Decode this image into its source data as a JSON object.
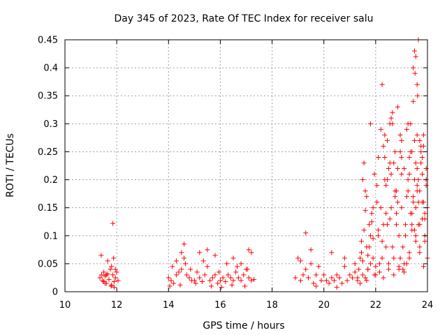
{
  "chart_data": {
    "type": "scatter",
    "title": "Day 345 of 2023, Rate Of TEC Index for receiver salu",
    "xlabel": "GPS time / hours",
    "ylabel": "ROTI / TECUs",
    "xlim": [
      10,
      24
    ],
    "ylim": [
      0,
      0.45
    ],
    "xticks": [
      10,
      12,
      14,
      16,
      18,
      20,
      22,
      24
    ],
    "yticks": [
      0,
      0.05,
      0.1,
      0.15,
      0.2,
      0.25,
      0.3,
      0.35,
      0.4,
      0.45
    ],
    "xtick_labels": [
      "10",
      "12",
      "14",
      "16",
      "18",
      "20",
      "22",
      "24"
    ],
    "ytick_labels": [
      "0",
      "0.05",
      "0.1",
      "0.15",
      "0.2",
      "0.25",
      "0.3",
      "0.35",
      "0.4",
      "0.45"
    ],
    "grid": true,
    "marker": "plus",
    "series": [
      {
        "name": "ROTI",
        "color": "#ff0000",
        "x": [
          11.35,
          11.4,
          11.45,
          11.5,
          11.55,
          11.6,
          11.65,
          11.7,
          11.75,
          11.8,
          11.85,
          11.9,
          11.95,
          12.0,
          12.05,
          11.55,
          11.6,
          11.8,
          11.85,
          11.5,
          11.9,
          11.95,
          11.65,
          11.42,
          11.78,
          11.88,
          14.0,
          14.1,
          14.2,
          14.3,
          14.4,
          14.5,
          14.6,
          14.7,
          14.8,
          14.9,
          15.0,
          15.1,
          15.2,
          15.3,
          15.4,
          15.5,
          15.6,
          15.7,
          15.8,
          15.9,
          16.0,
          16.1,
          16.2,
          16.3,
          16.4,
          16.5,
          16.6,
          16.7,
          16.8,
          16.9,
          17.0,
          17.1,
          17.2,
          17.3,
          14.5,
          14.6,
          14.65,
          14.3,
          15.2,
          15.5,
          15.8,
          16.5,
          16.8,
          17.1,
          17.2,
          14.15,
          14.85,
          15.35,
          15.95,
          16.25,
          16.65,
          17.05,
          14.05,
          14.45,
          15.05,
          15.65,
          16.05,
          16.45,
          16.95,
          18.9,
          19.0,
          19.1,
          19.2,
          19.3,
          19.4,
          19.5,
          19.6,
          19.7,
          19.8,
          19.9,
          20.0,
          20.1,
          20.2,
          20.3,
          20.4,
          20.5,
          20.6,
          20.7,
          20.8,
          20.9,
          21.0,
          21.1,
          21.2,
          21.3,
          19.3,
          19.5,
          20.3,
          19.1,
          19.7,
          20.5,
          20.8,
          21.2,
          21.3,
          21.35,
          21.4,
          21.45,
          21.5,
          21.55,
          21.6,
          21.65,
          21.7,
          21.75,
          21.8,
          21.85,
          21.9,
          21.95,
          22.0,
          21.4,
          21.5,
          21.6,
          21.7,
          21.8,
          21.9,
          21.55,
          21.65,
          21.75,
          21.45,
          21.85,
          21.95,
          21.6,
          21.7,
          21.8,
          21.9,
          21.5,
          21.65,
          22.0,
          22.05,
          22.1,
          22.15,
          22.2,
          22.25,
          22.3,
          22.35,
          22.4,
          22.45,
          22.5,
          22.55,
          22.6,
          22.65,
          22.7,
          22.75,
          22.8,
          22.85,
          22.9,
          22.95,
          23.0,
          22.1,
          22.2,
          22.3,
          22.4,
          22.5,
          22.6,
          22.7,
          22.8,
          22.9,
          23.0,
          22.25,
          22.35,
          22.45,
          22.55,
          22.65,
          22.75,
          22.85,
          22.95,
          22.15,
          22.3,
          22.5,
          22.7,
          22.9,
          22.05,
          22.25,
          22.45,
          22.65,
          22.85,
          22.35,
          22.55,
          22.75,
          22.95,
          22.1,
          22.4,
          22.6,
          22.8,
          23.0,
          23.05,
          23.1,
          23.15,
          23.2,
          23.25,
          23.3,
          23.35,
          23.4,
          23.45,
          23.5,
          23.55,
          23.6,
          23.65,
          23.7,
          23.75,
          23.8,
          23.85,
          23.9,
          23.95,
          24.0,
          23.1,
          23.2,
          23.3,
          23.4,
          23.5,
          23.6,
          23.7,
          23.8,
          23.9,
          24.0,
          23.15,
          23.25,
          23.35,
          23.45,
          23.55,
          23.65,
          23.75,
          23.85,
          23.95,
          23.45,
          23.5,
          23.52,
          23.55,
          23.6,
          23.62,
          23.65,
          23.7,
          23.3,
          23.4,
          23.6,
          23.7,
          23.8,
          23.9,
          23.05,
          23.25,
          23.45,
          23.65,
          23.85,
          23.35,
          23.55,
          23.75,
          23.95,
          23.1,
          23.4,
          23.6,
          23.8,
          23.2,
          23.5,
          23.7,
          23.9,
          23.0,
          23.3,
          23.55,
          23.85
        ],
        "y": [
          0.025,
          0.065,
          0.02,
          0.035,
          0.015,
          0.03,
          0.055,
          0.022,
          0.04,
          0.012,
          0.03,
          0.018,
          0.025,
          0.035,
          0.02,
          0.028,
          0.015,
          0.045,
          0.122,
          0.018,
          0.008,
          0.04,
          0.032,
          0.03,
          0.01,
          0.06,
          0.025,
          0.02,
          0.015,
          0.03,
          0.035,
          0.04,
          0.085,
          0.03,
          0.025,
          0.02,
          0.02,
          0.035,
          0.025,
          0.018,
          0.03,
          0.045,
          0.02,
          0.025,
          0.03,
          0.015,
          0.02,
          0.025,
          0.018,
          0.03,
          0.025,
          0.02,
          0.035,
          0.025,
          0.02,
          0.03,
          0.04,
          0.025,
          0.02,
          0.022,
          0.07,
          0.06,
          0.05,
          0.055,
          0.07,
          0.075,
          0.065,
          0.06,
          0.05,
          0.075,
          0.07,
          0.045,
          0.04,
          0.055,
          0.035,
          0.05,
          0.045,
          0.04,
          0.01,
          0.012,
          0.015,
          0.01,
          0.008,
          0.012,
          0.01,
          0.025,
          0.06,
          0.02,
          0.03,
          0.04,
          0.025,
          0.05,
          0.015,
          0.03,
          0.045,
          0.02,
          0.03,
          0.02,
          0.015,
          0.025,
          0.02,
          0.03,
          0.025,
          0.015,
          0.045,
          0.02,
          0.03,
          0.025,
          0.035,
          0.02,
          0.105,
          0.075,
          0.07,
          0.055,
          0.01,
          0.008,
          0.06,
          0.05,
          0.025,
          0.04,
          0.06,
          0.09,
          0.03,
          0.11,
          0.145,
          0.02,
          0.065,
          0.08,
          0.05,
          0.125,
          0.095,
          0.03,
          0.045,
          0.015,
          0.2,
          0.18,
          0.04,
          0.1,
          0.06,
          0.23,
          0.17,
          0.12,
          0.07,
          0.14,
          0.21,
          0.025,
          0.04,
          0.3,
          0.15,
          0.055,
          0.08,
          0.03,
          0.16,
          0.24,
          0.05,
          0.29,
          0.37,
          0.12,
          0.2,
          0.08,
          0.27,
          0.22,
          0.3,
          0.15,
          0.32,
          0.06,
          0.25,
          0.18,
          0.33,
          0.1,
          0.28,
          0.21,
          0.11,
          0.15,
          0.26,
          0.19,
          0.05,
          0.31,
          0.23,
          0.14,
          0.04,
          0.27,
          0.09,
          0.24,
          0.2,
          0.13,
          0.3,
          0.17,
          0.22,
          0.06,
          0.035,
          0.025,
          0.04,
          0.03,
          0.045,
          0.19,
          0.06,
          0.12,
          0.08,
          0.16,
          0.28,
          0.23,
          0.18,
          0.25,
          0.1,
          0.14,
          0.21,
          0.12,
          0.15,
          0.08,
          0.22,
          0.12,
          0.29,
          0.18,
          0.06,
          0.25,
          0.14,
          0.34,
          0.2,
          0.1,
          0.28,
          0.16,
          0.07,
          0.23,
          0.13,
          0.26,
          0.09,
          0.2,
          0.15,
          0.05,
          0.17,
          0.24,
          0.11,
          0.27,
          0.19,
          0.08,
          0.21,
          0.14,
          0.06,
          0.1,
          0.2,
          0.3,
          0.17,
          0.23,
          0.12,
          0.26,
          0.16,
          0.22,
          0.4,
          0.43,
          0.39,
          0.42,
          0.37,
          0.35,
          0.45,
          0.27,
          0.21,
          0.25,
          0.18,
          0.12,
          0.24,
          0.1,
          0.04,
          0.3,
          0.16,
          0.2,
          0.28,
          0.14,
          0.09,
          0.25,
          0.19,
          0.035,
          0.12,
          0.22,
          0.16,
          0.05,
          0.11,
          0.18,
          0.13,
          0.24,
          0.07,
          0.15,
          0.045
        ]
      }
    ]
  }
}
